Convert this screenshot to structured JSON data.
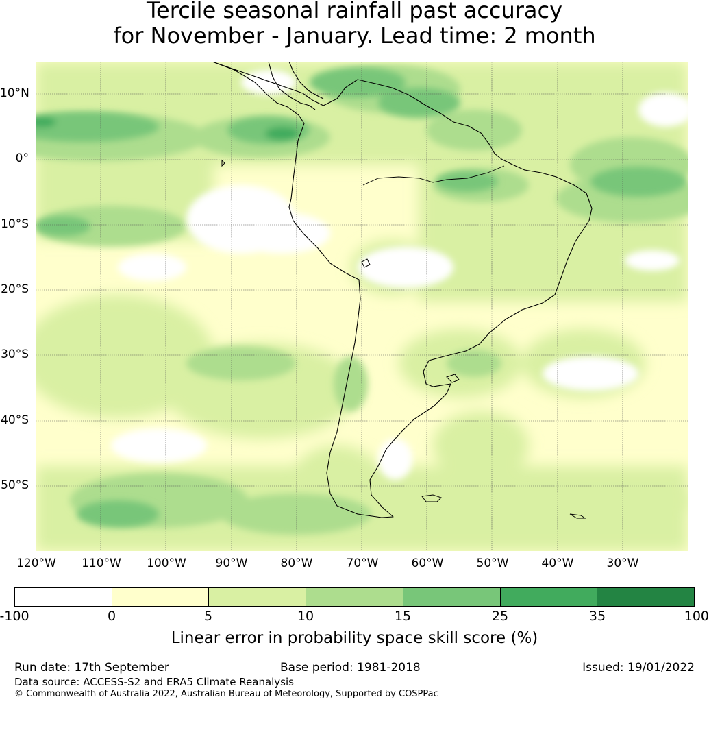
{
  "title_line1": "Tercile seasonal rainfall past accuracy",
  "title_line2": "for November - January. Lead time: 2 month",
  "lat_labels": [
    "10°N",
    "0°",
    "10°S",
    "20°S",
    "30°S",
    "40°S",
    "50°S"
  ],
  "lon_labels": [
    "120°W",
    "110°W",
    "100°W",
    "90°W",
    "80°W",
    "70°W",
    "60°W",
    "50°W",
    "40°W",
    "30°W"
  ],
  "map_extent": {
    "lon_min": -120,
    "lon_max": -20,
    "lat_min": -60,
    "lat_max": 15
  },
  "colorbar": {
    "ticks": [
      "-100",
      "0",
      "5",
      "10",
      "15",
      "25",
      "35",
      "100"
    ],
    "colors": [
      "#ffffff",
      "#ffffcc",
      "#d9f0a3",
      "#addd8e",
      "#78c679",
      "#41ab5d",
      "#238443"
    ],
    "label": "Linear error in probability space skill score (%)"
  },
  "footer": {
    "run_date": "Run date: 17th September",
    "base_period": "Base period: 1981-2018",
    "issued": "Issued: 19/01/2022",
    "data_source": "Data source: ACCESS-S2 and ERA5 Climate Reanalysis",
    "copyright": "© Commonwealth of Australia 2022, Australian Bureau of Meteorology, Supported by COSPPac"
  }
}
